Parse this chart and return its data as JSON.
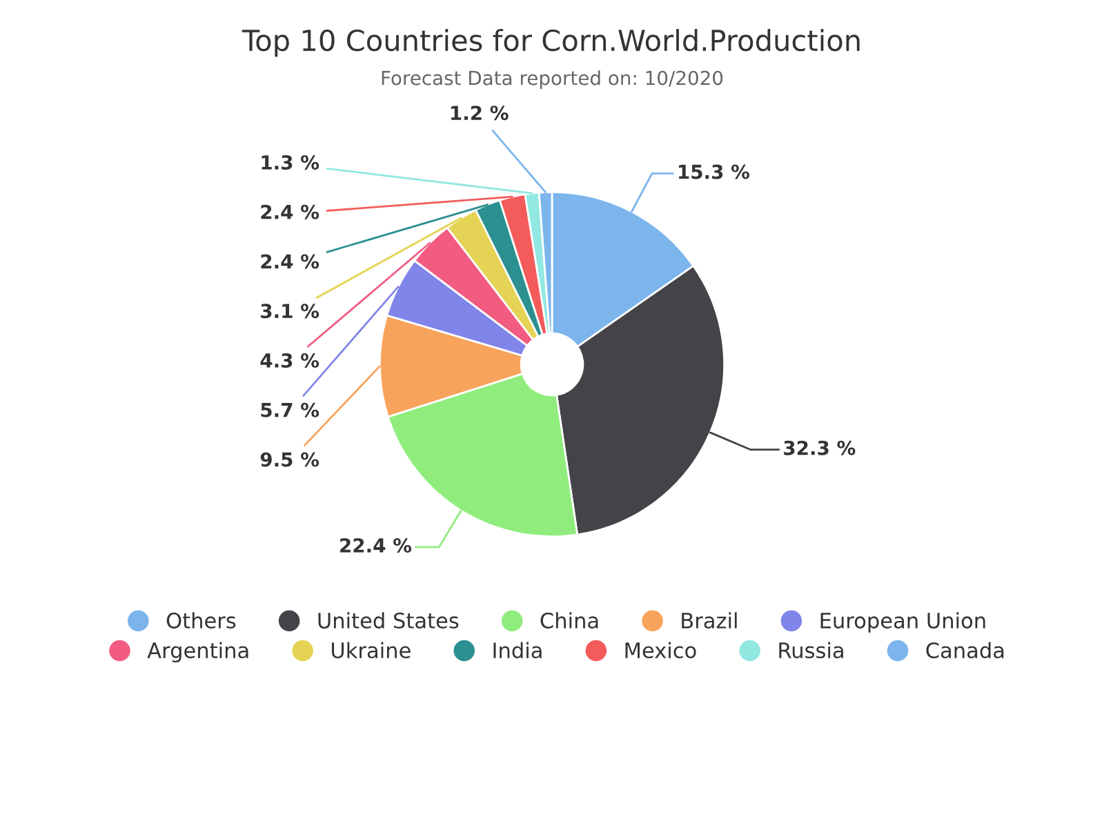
{
  "chart_data": {
    "type": "donut",
    "title": "Top 10 Countries for Corn.World.Production",
    "subtitle": "Forecast Data reported on: 10/2020",
    "categories": [
      "Others",
      "United States",
      "China",
      "Brazil",
      "European Union",
      "Argentina",
      "Ukraine",
      "India",
      "Mexico",
      "Russia",
      "Canada"
    ],
    "values": [
      15.3,
      32.3,
      22.4,
      9.5,
      5.7,
      4.3,
      3.1,
      2.4,
      2.4,
      1.3,
      1.2
    ],
    "value_labels": [
      "15.3 %",
      "32.3 %",
      "22.4 %",
      "9.5 %",
      "5.7 %",
      "4.3 %",
      "3.1 %",
      "2.4 %",
      "2.4 %",
      "1.3 %",
      "1.2 %"
    ],
    "colors": [
      "#7cb5ec",
      "#434348",
      "#90ed7d",
      "#f7a35c",
      "#8085e9",
      "#f15c80",
      "#e4d354",
      "#2b908f",
      "#f45b5b",
      "#91e8e1",
      "#7cb5ec"
    ],
    "legend": "bottom"
  }
}
